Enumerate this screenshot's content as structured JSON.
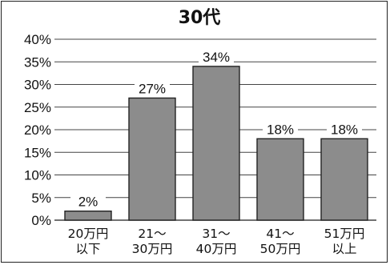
{
  "chart_data": {
    "type": "bar",
    "title": "30代",
    "categories": [
      [
        "20万円",
        "以下"
      ],
      [
        "21～",
        "30万円"
      ],
      [
        "31～",
        "40万円"
      ],
      [
        "41～",
        "50万円"
      ],
      [
        "51万円",
        "以上"
      ]
    ],
    "values": [
      2,
      27,
      34,
      18,
      18
    ],
    "data_labels": [
      "2%",
      "27%",
      "34%",
      "18%",
      "18%"
    ],
    "ylim": [
      0,
      40
    ],
    "yticks": [
      "0%",
      "5%",
      "10%",
      "15%",
      "20%",
      "25%",
      "30%",
      "35%",
      "40%"
    ],
    "xlabel": "",
    "ylabel": "",
    "grid": true,
    "colors": {
      "bar": "#8c8c8c",
      "bar_edge": "#222222",
      "grid": "#444444",
      "text": "#111111"
    }
  }
}
